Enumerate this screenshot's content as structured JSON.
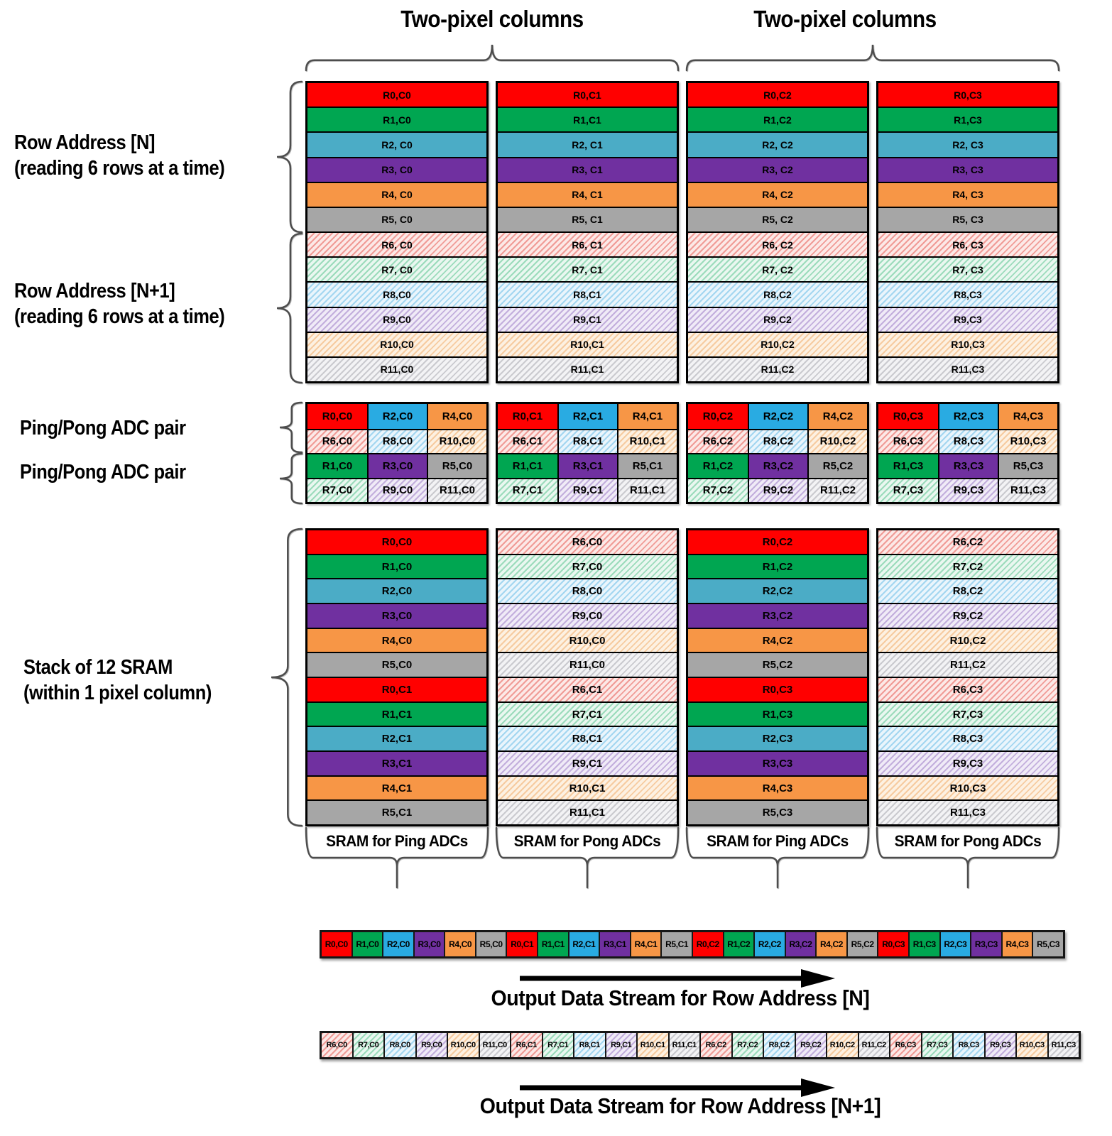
{
  "titles": {
    "left": "Two-pixel columns",
    "right": "Two-pixel columns"
  },
  "left_labels": {
    "row_address_n": {
      "line1": "Row Address [N]",
      "line2": "(reading 6 rows at a time)"
    },
    "row_address_n1": {
      "line1": "Row Address [N+1]",
      "line2": "(reading 6 rows at a time)"
    },
    "ping_pong_1": "Ping/Pong ADC pair",
    "ping_pong_2": "Ping/Pong ADC pair",
    "sram_stack": {
      "line1": "Stack of 12 SRAM",
      "line2": "(within 1 pixel column)"
    }
  },
  "palette": {
    "solid": [
      "#FF0000",
      "#00A651",
      "#4BACC6",
      "#7030A0",
      "#F79646",
      "#A6A6A6"
    ],
    "adc_cyan": "#29ABE2",
    "hatch_stripe": [
      "#F09B96",
      "#9BDBBB",
      "#A3D6F0",
      "#C2AEDC",
      "#F6CBA0",
      "#CACACF"
    ],
    "hatch_bg": [
      "#FCE9E7",
      "#EAF7F0",
      "#EAF5FC",
      "#F0EBF7",
      "#FDF1E2",
      "#F3F3F5"
    ]
  },
  "pixel_array": {
    "columns": [
      {
        "rows": [
          "R0,C0",
          "R1,C0",
          "R2, C0",
          "R3, C0",
          "R4, C0",
          "R5, C0",
          "R6, C0",
          "R7, C0",
          "R8,C0",
          "R9,C0",
          "R10,C0",
          "R11,C0"
        ]
      },
      {
        "rows": [
          "R0,C1",
          "R1,C1",
          "R2, C1",
          "R3, C1",
          "R4, C1",
          "R5, C1",
          "R6, C1",
          "R7, C1",
          "R8,C1",
          "R9,C1",
          "R10,C1",
          "R11,C1"
        ]
      },
      {
        "rows": [
          "R0,C2",
          "R1,C2",
          "R2, C2",
          "R3, C2",
          "R4, C2",
          "R5, C2",
          "R6, C2",
          "R7, C2",
          "R8,C2",
          "R9,C2",
          "R10,C2",
          "R11,C2"
        ]
      },
      {
        "rows": [
          "R0,C3",
          "R1,C3",
          "R2, C3",
          "R3, C3",
          "R4, C3",
          "R5, C3",
          "R6, C3",
          "R7, C3",
          "R8,C3",
          "R9,C3",
          "R10,C3",
          "R11,C3"
        ]
      }
    ]
  },
  "adc_grids": [
    {
      "cells": [
        [
          "R0,C0",
          "R2,C0",
          "R4,C0"
        ],
        [
          "R6,C0",
          "R8,C0",
          "R10,C0"
        ],
        [
          "R1,C0",
          "R3,C0",
          "R5,C0"
        ],
        [
          "R7,C0",
          "R9,C0",
          "R11,C0"
        ]
      ]
    },
    {
      "cells": [
        [
          "R0,C1",
          "R2,C1",
          "R4,C1"
        ],
        [
          "R6,C1",
          "R8,C1",
          "R10,C1"
        ],
        [
          "R1,C1",
          "R3,C1",
          "R5,C1"
        ],
        [
          "R7,C1",
          "R9,C1",
          "R11,C1"
        ]
      ]
    },
    {
      "cells": [
        [
          "R0,C2",
          "R2,C2",
          "R4,C2"
        ],
        [
          "R6,C2",
          "R8,C2",
          "R10,C2"
        ],
        [
          "R1,C2",
          "R3,C2",
          "R5,C2"
        ],
        [
          "R7,C2",
          "R9,C2",
          "R11,C2"
        ]
      ]
    },
    {
      "cells": [
        [
          "R0,C3",
          "R2,C3",
          "R4,C3"
        ],
        [
          "R6,C3",
          "R8,C3",
          "R10,C3"
        ],
        [
          "R1,C3",
          "R3,C3",
          "R5,C3"
        ],
        [
          "R7,C3",
          "R9,C3",
          "R11,C3"
        ]
      ]
    }
  ],
  "sram_stacks": [
    {
      "caption": "SRAM for Ping ADCs",
      "rows": [
        "R0,C0",
        "R1,C0",
        "R2,C0",
        "R3,C0",
        "R4,C0",
        "R5,C0",
        "R0,C1",
        "R1,C1",
        "R2,C1",
        "R3,C1",
        "R4,C1",
        "R5,C1"
      ]
    },
    {
      "caption": "SRAM for Pong ADCs",
      "rows": [
        "R6,C0",
        "R7,C0",
        "R8,C0",
        "R9,C0",
        "R10,C0",
        "R11,C0",
        "R6,C1",
        "R7,C1",
        "R8,C1",
        "R9,C1",
        "R10,C1",
        "R11,C1"
      ]
    },
    {
      "caption": "SRAM for Ping ADCs",
      "rows": [
        "R0,C2",
        "R1,C2",
        "R2,C2",
        "R3,C2",
        "R4,C2",
        "R5,C2",
        "R0,C3",
        "R1,C3",
        "R2,C3",
        "R3,C3",
        "R4,C3",
        "R5,C3"
      ]
    },
    {
      "caption": "SRAM for Pong ADCs",
      "rows": [
        "R6,C2",
        "R7,C2",
        "R8,C2",
        "R9,C2",
        "R10,C2",
        "R11,C2",
        "R6,C3",
        "R7,C3",
        "R8,C3",
        "R9,C3",
        "R10,C3",
        "R11,C3"
      ]
    }
  ],
  "streams": [
    {
      "caption": "Output Data Stream for Row Address [N]",
      "cells": [
        "R0,C0",
        "R1,C0",
        "R2,C0",
        "R3,C0",
        "R4,C0",
        "R5,C0",
        "R0,C1",
        "R1,C1",
        "R2,C1",
        "R3,C1",
        "R4,C1",
        "R5,C1",
        "R0,C2",
        "R1,C2",
        "R2,C2",
        "R3,C2",
        "R4,C2",
        "R5,C2",
        "R0,C3",
        "R1,C3",
        "R2,C3",
        "R3,C3",
        "R4,C3",
        "R5,C3"
      ]
    },
    {
      "caption": "Output Data Stream for Row Address [N+1]",
      "cells": [
        "R6,C0",
        "R7,C0",
        "R8,C0",
        "R9,C0",
        "R10,C0",
        "R11,C0",
        "R6,C1",
        "R7,C1",
        "R8,C1",
        "R9,C1",
        "R10,C1",
        "R11,C1",
        "R6,C2",
        "R7,C2",
        "R8,C2",
        "R9,C2",
        "R10,C2",
        "R11,C2",
        "R6,C3",
        "R7,C3",
        "R8,C3",
        "R9,C3",
        "R10,C3",
        "R11,C3"
      ]
    }
  ]
}
